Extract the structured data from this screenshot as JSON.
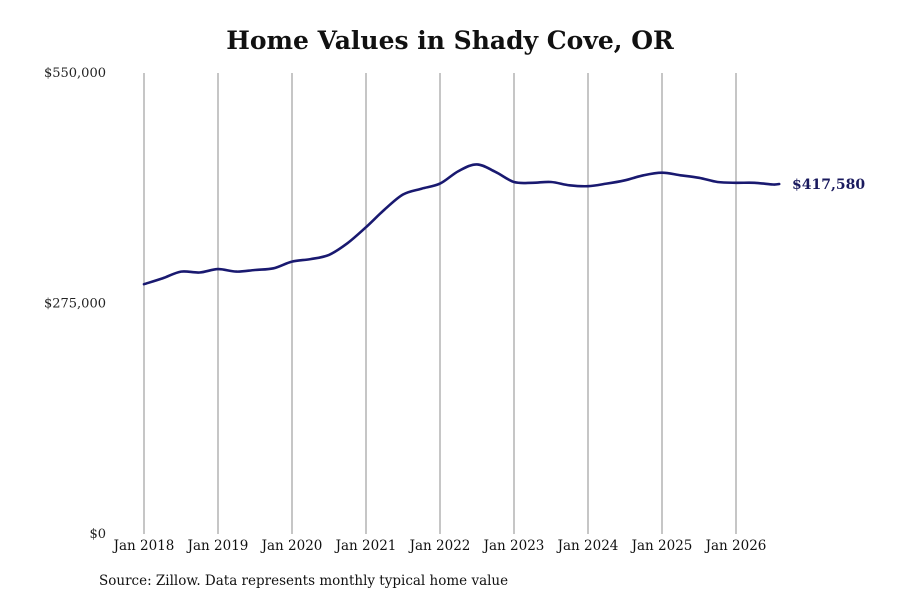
{
  "chart_data": {
    "type": "line",
    "title": "Home Values in Shady Cove, OR",
    "xlabel": "",
    "ylabel": "",
    "ylim": [
      0,
      550000
    ],
    "y_ticks": [
      "$550,000",
      "$275,000",
      "$0"
    ],
    "y_tick_values": [
      550000,
      275000,
      0
    ],
    "x_ticks": [
      "Jan 2018",
      "Jan 2019",
      "Jan 2020",
      "Jan 2021",
      "Jan 2022",
      "Jan 2023",
      "Jan 2024",
      "Jan 2025",
      "Jan 2026"
    ],
    "x_tick_values": [
      2018,
      2019,
      2020,
      2021,
      2022,
      2023,
      2024,
      2025,
      2026
    ],
    "grid": "vertical",
    "line_color": "#191970",
    "series": [
      {
        "x": [
          "2018-01",
          "2018-04",
          "2018-07",
          "2018-10",
          "2019-01",
          "2019-04",
          "2019-07",
          "2019-10",
          "2020-01",
          "2020-04",
          "2020-07",
          "2020-10",
          "2021-01",
          "2021-04",
          "2021-07",
          "2021-10",
          "2022-01",
          "2022-04",
          "2022-07",
          "2022-10",
          "2023-01",
          "2023-04",
          "2023-07",
          "2023-10",
          "2024-01",
          "2024-04",
          "2024-07",
          "2024-10",
          "2025-01",
          "2025-04",
          "2025-07",
          "2025-10",
          "2026-01",
          "2026-04",
          "2026-07",
          "2026-08"
        ],
        "values": [
          298000,
          305000,
          313000,
          312000,
          316000,
          313000,
          315000,
          317000,
          325000,
          328000,
          333000,
          347000,
          366000,
          387000,
          405000,
          412000,
          418000,
          433000,
          441000,
          432000,
          420000,
          419000,
          420000,
          416000,
          415000,
          418000,
          422000,
          428000,
          431000,
          428000,
          425000,
          420000,
          419000,
          419000,
          417000,
          417580
        ]
      }
    ],
    "end_label": "$417,580"
  },
  "source_note": "Source: Zillow. Data represents monthly typical home value"
}
